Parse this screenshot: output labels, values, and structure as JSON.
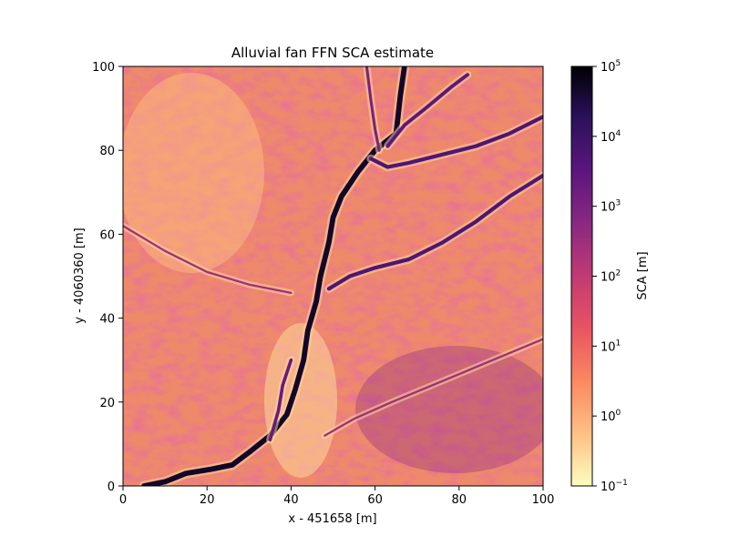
{
  "chart_data": {
    "type": "heatmap",
    "title": "Alluvial fan FFN SCA estimate",
    "xlabel": "x - 451658 [m]",
    "ylabel": "y - 4060360 [m]",
    "xlim": [
      0,
      100
    ],
    "ylim": [
      0,
      100
    ],
    "xticks": [
      0,
      20,
      40,
      60,
      80,
      100
    ],
    "yticks": [
      0,
      20,
      40,
      60,
      80,
      100
    ],
    "grid": false,
    "colorbar": {
      "label": "SCA [m]",
      "scale": "log",
      "range": [
        0.1,
        100000
      ],
      "colormap": "magma_r",
      "ticks": [
        {
          "base": "10",
          "exp": "5",
          "value": 100000
        },
        {
          "base": "10",
          "exp": "4",
          "value": 10000
        },
        {
          "base": "10",
          "exp": "3",
          "value": 1000
        },
        {
          "base": "10",
          "exp": "2",
          "value": 100
        },
        {
          "base": "10",
          "exp": "1",
          "value": 10
        },
        {
          "base": "10",
          "exp": "0",
          "value": 1
        },
        {
          "base": "10",
          "exp": "−1",
          "value": 0.1
        }
      ]
    },
    "channels": [
      {
        "name": "main-channel",
        "sca": 50000,
        "points": [
          [
            67,
            100
          ],
          [
            66,
            93
          ],
          [
            65,
            84
          ],
          [
            60,
            80
          ],
          [
            56,
            75
          ],
          [
            52,
            69
          ],
          [
            50,
            64
          ],
          [
            49,
            58
          ],
          [
            47,
            50
          ],
          [
            46,
            44
          ],
          [
            44,
            37
          ],
          [
            43,
            30
          ],
          [
            41,
            23
          ],
          [
            39,
            17
          ],
          [
            35,
            12
          ],
          [
            30,
            8
          ],
          [
            26,
            5
          ],
          [
            21,
            4
          ],
          [
            15,
            3
          ],
          [
            10,
            1
          ],
          [
            5,
            0
          ]
        ]
      },
      {
        "name": "northeast-tributary",
        "sca": 5000,
        "points": [
          [
            100,
            88
          ],
          [
            92,
            84
          ],
          [
            84,
            81
          ],
          [
            76,
            79
          ],
          [
            68,
            77
          ],
          [
            63,
            76
          ],
          [
            59,
            78
          ]
        ]
      },
      {
        "name": "east-tributary",
        "sca": 5000,
        "points": [
          [
            100,
            74
          ],
          [
            92,
            69
          ],
          [
            84,
            63
          ],
          [
            76,
            58
          ],
          [
            68,
            54
          ],
          [
            60,
            52
          ],
          [
            54,
            50
          ],
          [
            49,
            47
          ]
        ]
      },
      {
        "name": "north-tributary",
        "sca": 3000,
        "points": [
          [
            82,
            98
          ],
          [
            78,
            95
          ],
          [
            72,
            90
          ],
          [
            67,
            86
          ],
          [
            63,
            81
          ]
        ]
      },
      {
        "name": "upper-left-tributary",
        "sca": 1000,
        "points": [
          [
            58,
            100
          ],
          [
            59,
            92
          ],
          [
            60,
            85
          ],
          [
            61,
            80
          ]
        ]
      },
      {
        "name": "west-rill-1",
        "sca": 300,
        "points": [
          [
            0,
            62
          ],
          [
            10,
            56
          ],
          [
            20,
            51
          ],
          [
            30,
            48
          ],
          [
            40,
            46
          ]
        ]
      },
      {
        "name": "southeast-rill",
        "sca": 300,
        "points": [
          [
            100,
            35
          ],
          [
            88,
            30
          ],
          [
            76,
            25
          ],
          [
            64,
            20
          ],
          [
            55,
            16
          ],
          [
            48,
            12
          ]
        ]
      },
      {
        "name": "lower-fan-tributary",
        "sca": 2000,
        "points": [
          [
            40,
            30
          ],
          [
            38,
            24
          ],
          [
            37,
            18
          ],
          [
            35,
            11
          ]
        ]
      }
    ]
  }
}
